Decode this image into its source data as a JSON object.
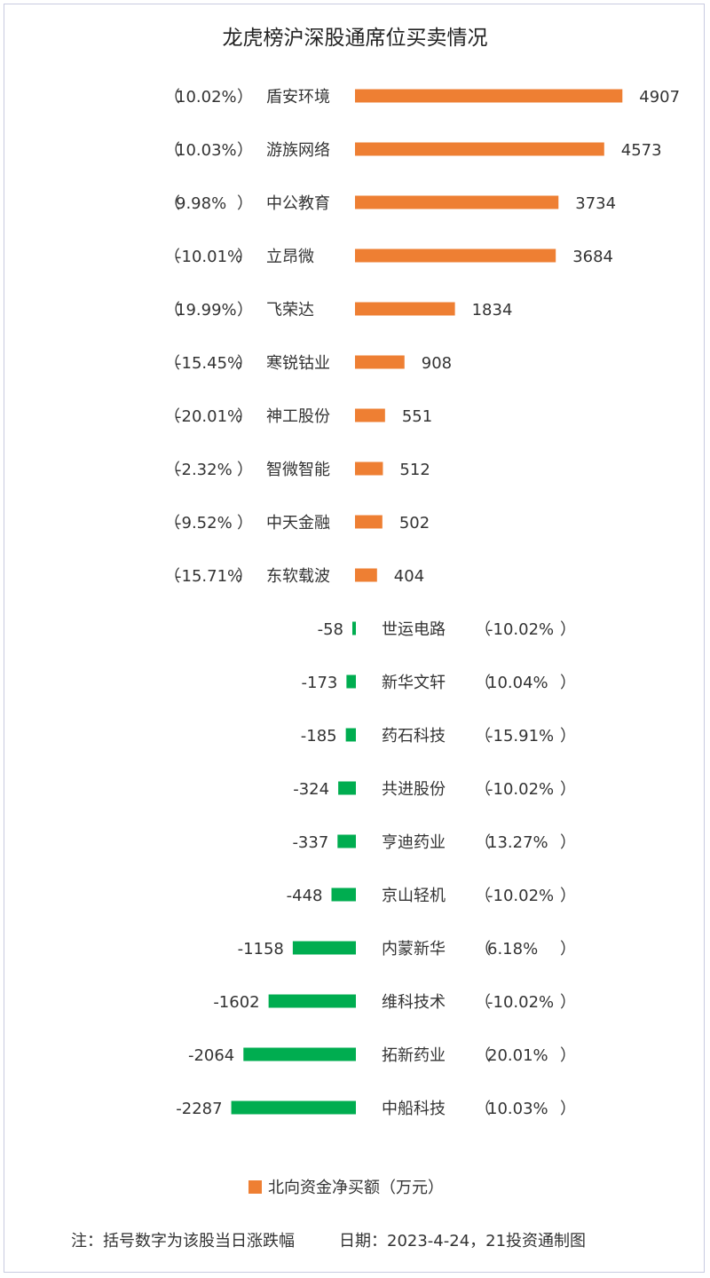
{
  "chart_data": {
    "type": "bar",
    "orientation": "horizontal",
    "title": "龙虎榜沪深股通席位买卖情况",
    "unit": "万元",
    "legend": {
      "label": "北向资金净买额（万元）",
      "color": "#ee7f33",
      "position": "bottom"
    },
    "colors": {
      "positive": "#ee7f33",
      "negative": "#00ad50"
    },
    "rows": [
      {
        "name": "盾安环境",
        "value": 4907,
        "value_label": "4907",
        "change": "10.02%"
      },
      {
        "name": "游族网络",
        "value": 4573,
        "value_label": "4573",
        "change": "10.03%"
      },
      {
        "name": "中公教育",
        "value": 3734,
        "value_label": "3734",
        "change": "9.98%"
      },
      {
        "name": "立昂微",
        "value": 3684,
        "value_label": "3684",
        "change": "-10.01%"
      },
      {
        "name": "飞荣达",
        "value": 1834,
        "value_label": "1834",
        "change": "19.99%"
      },
      {
        "name": "寒锐钴业",
        "value": 908,
        "value_label": "908",
        "change": "-15.45%"
      },
      {
        "name": "神工股份",
        "value": 551,
        "value_label": "551",
        "change": "-20.01%"
      },
      {
        "name": "智微智能",
        "value": 512,
        "value_label": "512",
        "change": "-2.32%"
      },
      {
        "name": "中天金融",
        "value": 502,
        "value_label": "502",
        "change": "-9.52%"
      },
      {
        "name": "东软载波",
        "value": 404,
        "value_label": "404",
        "change": "-15.71%"
      },
      {
        "name": "世运电路",
        "value": -58,
        "value_label": "-58",
        "change": "-10.02%"
      },
      {
        "name": "新华文轩",
        "value": -173,
        "value_label": "-173",
        "change": "10.04%"
      },
      {
        "name": "药石科技",
        "value": -185,
        "value_label": "-185",
        "change": "-15.91%"
      },
      {
        "name": "共进股份",
        "value": -324,
        "value_label": "-324",
        "change": "-10.02%"
      },
      {
        "name": "亨迪药业",
        "value": -337,
        "value_label": "-337",
        "change": "13.27%"
      },
      {
        "name": "京山轻机",
        "value": -448,
        "value_label": "-448",
        "change": "-10.02%"
      },
      {
        "name": "内蒙新华",
        "value": -1158,
        "value_label": "-1158",
        "change": "6.18%"
      },
      {
        "name": "维科技术",
        "value": -1602,
        "value_label": "-1602",
        "change": "-10.02%"
      },
      {
        "name": "拓新药业",
        "value": -2064,
        "value_label": "-2064",
        "change": "20.01%"
      },
      {
        "name": "中船科技",
        "value": -2287,
        "value_label": "-2287",
        "change": "10.03%"
      }
    ]
  },
  "footer": {
    "note": "注：括号数字为该股当日涨跌幅",
    "date": "日期：2023-4-24，21投资通制图"
  }
}
